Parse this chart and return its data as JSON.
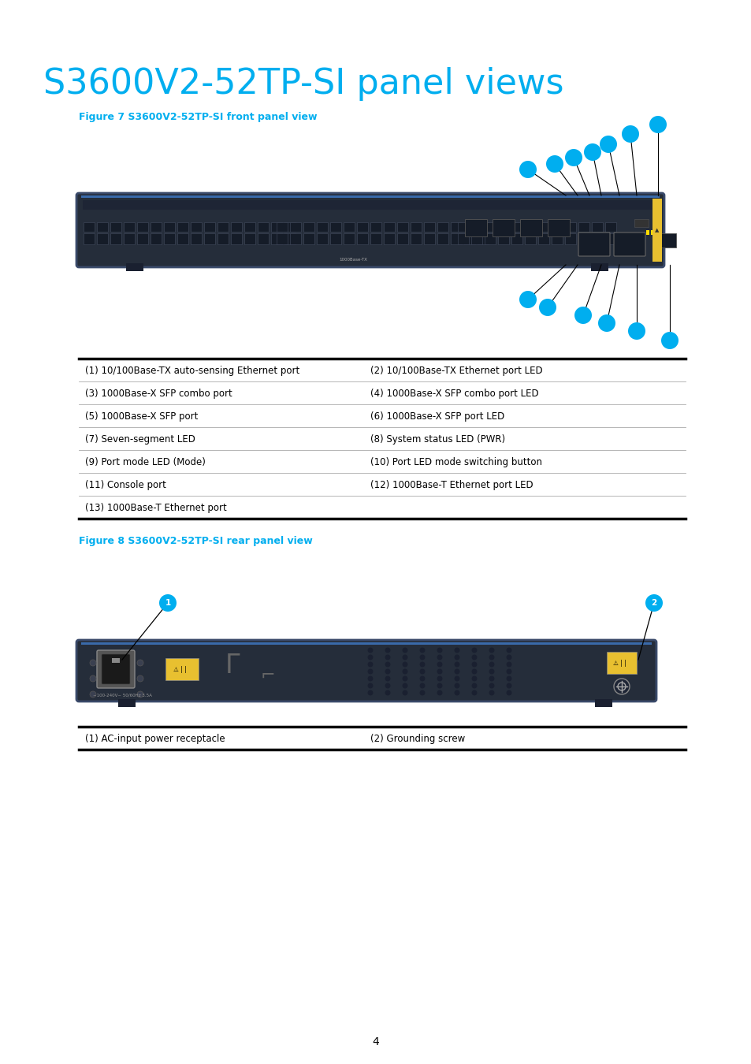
{
  "title": "S3600V2-52TP-SI panel views",
  "title_color": "#00AEEF",
  "title_fontsize": 32,
  "bg_color": "#ffffff",
  "fig7_label": "Figure 7 S3600V2-52TP-SI front panel view",
  "fig8_label": "Figure 8 S3600V2-52TP-SI rear panel view",
  "figure_label_color": "#00AEEF",
  "figure_label_fontsize": 9,
  "table1_rows": [
    [
      "(1) 10/100Base-TX auto-sensing Ethernet port",
      "(2) 10/100Base-TX Ethernet port LED"
    ],
    [
      "(3) 1000Base-X SFP combo port",
      "(4) 1000Base-X SFP combo port LED"
    ],
    [
      "(5) 1000Base-X SFP port",
      "(6) 1000Base-X SFP port LED"
    ],
    [
      "(7) Seven-segment LED",
      "(8) System status LED (PWR)"
    ],
    [
      "(9) Port mode LED (Mode)",
      "(10) Port LED mode switching button"
    ],
    [
      "(11) Console port",
      "(12) 1000Base-T Ethernet port LED"
    ],
    [
      "(13) 1000Base-T Ethernet port",
      ""
    ]
  ],
  "table2_rows": [
    [
      "(1) AC-input power receptacle",
      "(2) Grounding screw"
    ]
  ],
  "page_number": "4",
  "dot_color": "#00AEEF",
  "panel_color": "#2a3040",
  "panel_edge": "#1a2030"
}
